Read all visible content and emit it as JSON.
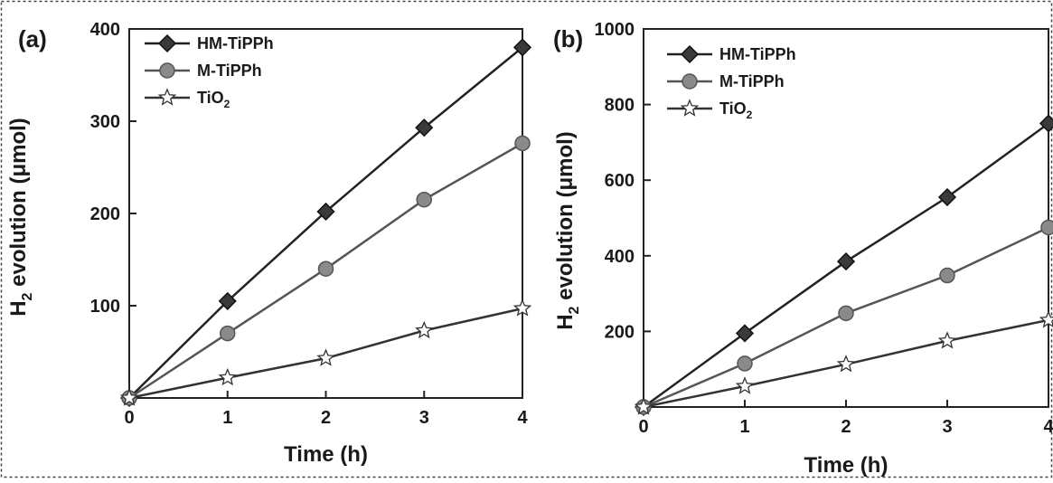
{
  "chart_data": [
    {
      "panel_label": "(a)",
      "type": "line",
      "xlabel": "Time (h)",
      "ylabel_prefix": "H",
      "ylabel_sub": "2",
      "ylabel_suffix": " evolution (μmol)",
      "xlim": [
        0,
        4
      ],
      "ylim": [
        0,
        400
      ],
      "xticks": [
        0,
        1,
        2,
        3,
        4
      ],
      "yticks": [
        100,
        200,
        300,
        400
      ],
      "legend_position": "top-left",
      "x": [
        0,
        1,
        2,
        3,
        4
      ],
      "series": [
        {
          "name": "HM-TiPPh",
          "name_base": "HM-TiPPh",
          "name_sub": "",
          "marker": "diamond",
          "color": "#222222",
          "values": [
            0,
            105,
            202,
            293,
            380
          ]
        },
        {
          "name": "M-TiPPh",
          "name_base": "M-TiPPh",
          "name_sub": "",
          "marker": "circle",
          "color": "#555555",
          "values": [
            0,
            70,
            140,
            215,
            276
          ]
        },
        {
          "name": "TiO2",
          "name_base": "TiO",
          "name_sub": "2",
          "marker": "star",
          "color": "#333333",
          "values": [
            0,
            22,
            43,
            73,
            97
          ]
        }
      ]
    },
    {
      "panel_label": "(b)",
      "type": "line",
      "xlabel": "Time (h)",
      "ylabel_prefix": "H",
      "ylabel_sub": "2",
      "ylabel_suffix": " evolution (μmol)",
      "xlim": [
        0,
        4
      ],
      "ylim": [
        0,
        1000
      ],
      "xticks": [
        0,
        1,
        2,
        3,
        4
      ],
      "yticks": [
        200,
        400,
        600,
        800,
        1000
      ],
      "legend_position": "top-left",
      "x": [
        0,
        1,
        2,
        3,
        4
      ],
      "series": [
        {
          "name": "HM-TiPPh",
          "name_base": "HM-TiPPh",
          "name_sub": "",
          "marker": "diamond",
          "color": "#222222",
          "values": [
            0,
            195,
            385,
            555,
            750
          ]
        },
        {
          "name": "M-TiPPh",
          "name_base": "M-TiPPh",
          "name_sub": "",
          "marker": "circle",
          "color": "#555555",
          "values": [
            0,
            115,
            248,
            348,
            475
          ]
        },
        {
          "name": "TiO2",
          "name_base": "TiO",
          "name_sub": "2",
          "marker": "star",
          "color": "#333333",
          "values": [
            0,
            55,
            113,
            175,
            230
          ]
        }
      ]
    }
  ]
}
